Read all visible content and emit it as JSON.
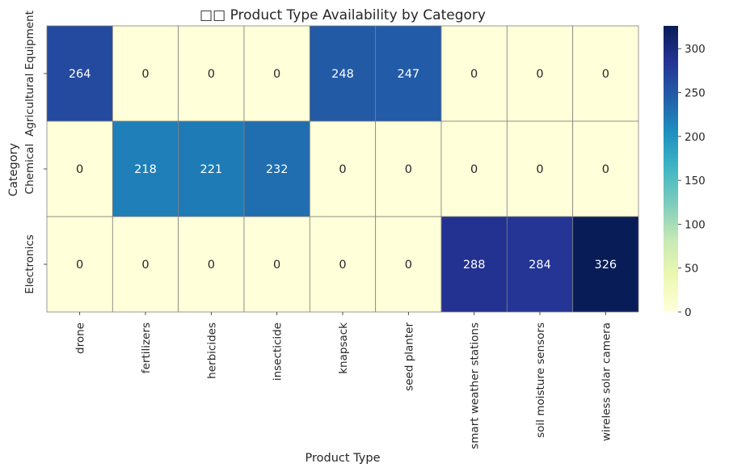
{
  "chart_data": {
    "type": "heatmap",
    "title": "□□ Product Type Availability by Category",
    "xlabel": "Product Type",
    "ylabel": "Category",
    "x_categories": [
      "drone",
      "fertilizers",
      "herbicides",
      "insecticide",
      "knapsack",
      "seed planter",
      "smart weather stations",
      "soil moisture sensors",
      "wireless solar camera"
    ],
    "y_categories": [
      "Agricultural Equipment",
      "Chemical",
      "Electronics"
    ],
    "values": [
      [
        264,
        0,
        0,
        0,
        248,
        247,
        0,
        0,
        0
      ],
      [
        0,
        218,
        221,
        232,
        0,
        0,
        0,
        0,
        0
      ],
      [
        0,
        0,
        0,
        0,
        0,
        0,
        288,
        284,
        326
      ]
    ],
    "colormap": "YlGnBu",
    "vmin": 0,
    "vmax": 326,
    "colorbar_ticks": [
      0,
      50,
      100,
      150,
      200,
      250,
      300
    ],
    "annotations": true,
    "cell_border_color": "#808080"
  }
}
